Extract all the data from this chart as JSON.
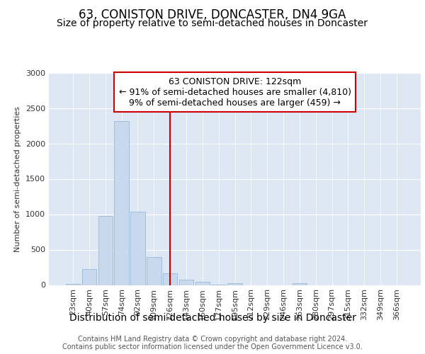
{
  "title": "63, CONISTON DRIVE, DONCASTER, DN4 9GA",
  "subtitle": "Size of property relative to semi-detached houses in Doncaster",
  "xlabel": "Distribution of semi-detached houses by size in Doncaster",
  "ylabel": "Number of semi-detached properties",
  "bin_labels": [
    "23sqm",
    "40sqm",
    "57sqm",
    "74sqm",
    "92sqm",
    "109sqm",
    "126sqm",
    "143sqm",
    "160sqm",
    "177sqm",
    "195sqm",
    "212sqm",
    "229sqm",
    "246sqm",
    "263sqm",
    "280sqm",
    "297sqm",
    "315sqm",
    "332sqm",
    "349sqm",
    "366sqm"
  ],
  "bin_values": [
    20,
    230,
    980,
    2320,
    1040,
    400,
    170,
    75,
    45,
    5,
    25,
    0,
    0,
    0,
    25,
    0,
    0,
    0,
    0,
    0,
    0
  ],
  "bar_color": "#c8d9ee",
  "bar_edge_color": "#9ab8d8",
  "property_label": "63 CONISTON DRIVE: 122sqm",
  "annotation_line1": "← 91% of semi-detached houses are smaller (4,810)",
  "annotation_line2": "9% of semi-detached houses are larger (459) →",
  "vline_color": "#cc0000",
  "box_edge_color": "#cc0000",
  "ylim": [
    0,
    3000
  ],
  "yticks": [
    0,
    500,
    1000,
    1500,
    2000,
    2500,
    3000
  ],
  "plot_background": "#dde8f4",
  "footer_line1": "Contains HM Land Registry data © Crown copyright and database right 2024.",
  "footer_line2": "Contains public sector information licensed under the Open Government Licence v3.0.",
  "title_fontsize": 12,
  "subtitle_fontsize": 10,
  "xlabel_fontsize": 10,
  "ylabel_fontsize": 8,
  "tick_fontsize": 8,
  "annotation_fontsize": 9,
  "footer_fontsize": 7
}
